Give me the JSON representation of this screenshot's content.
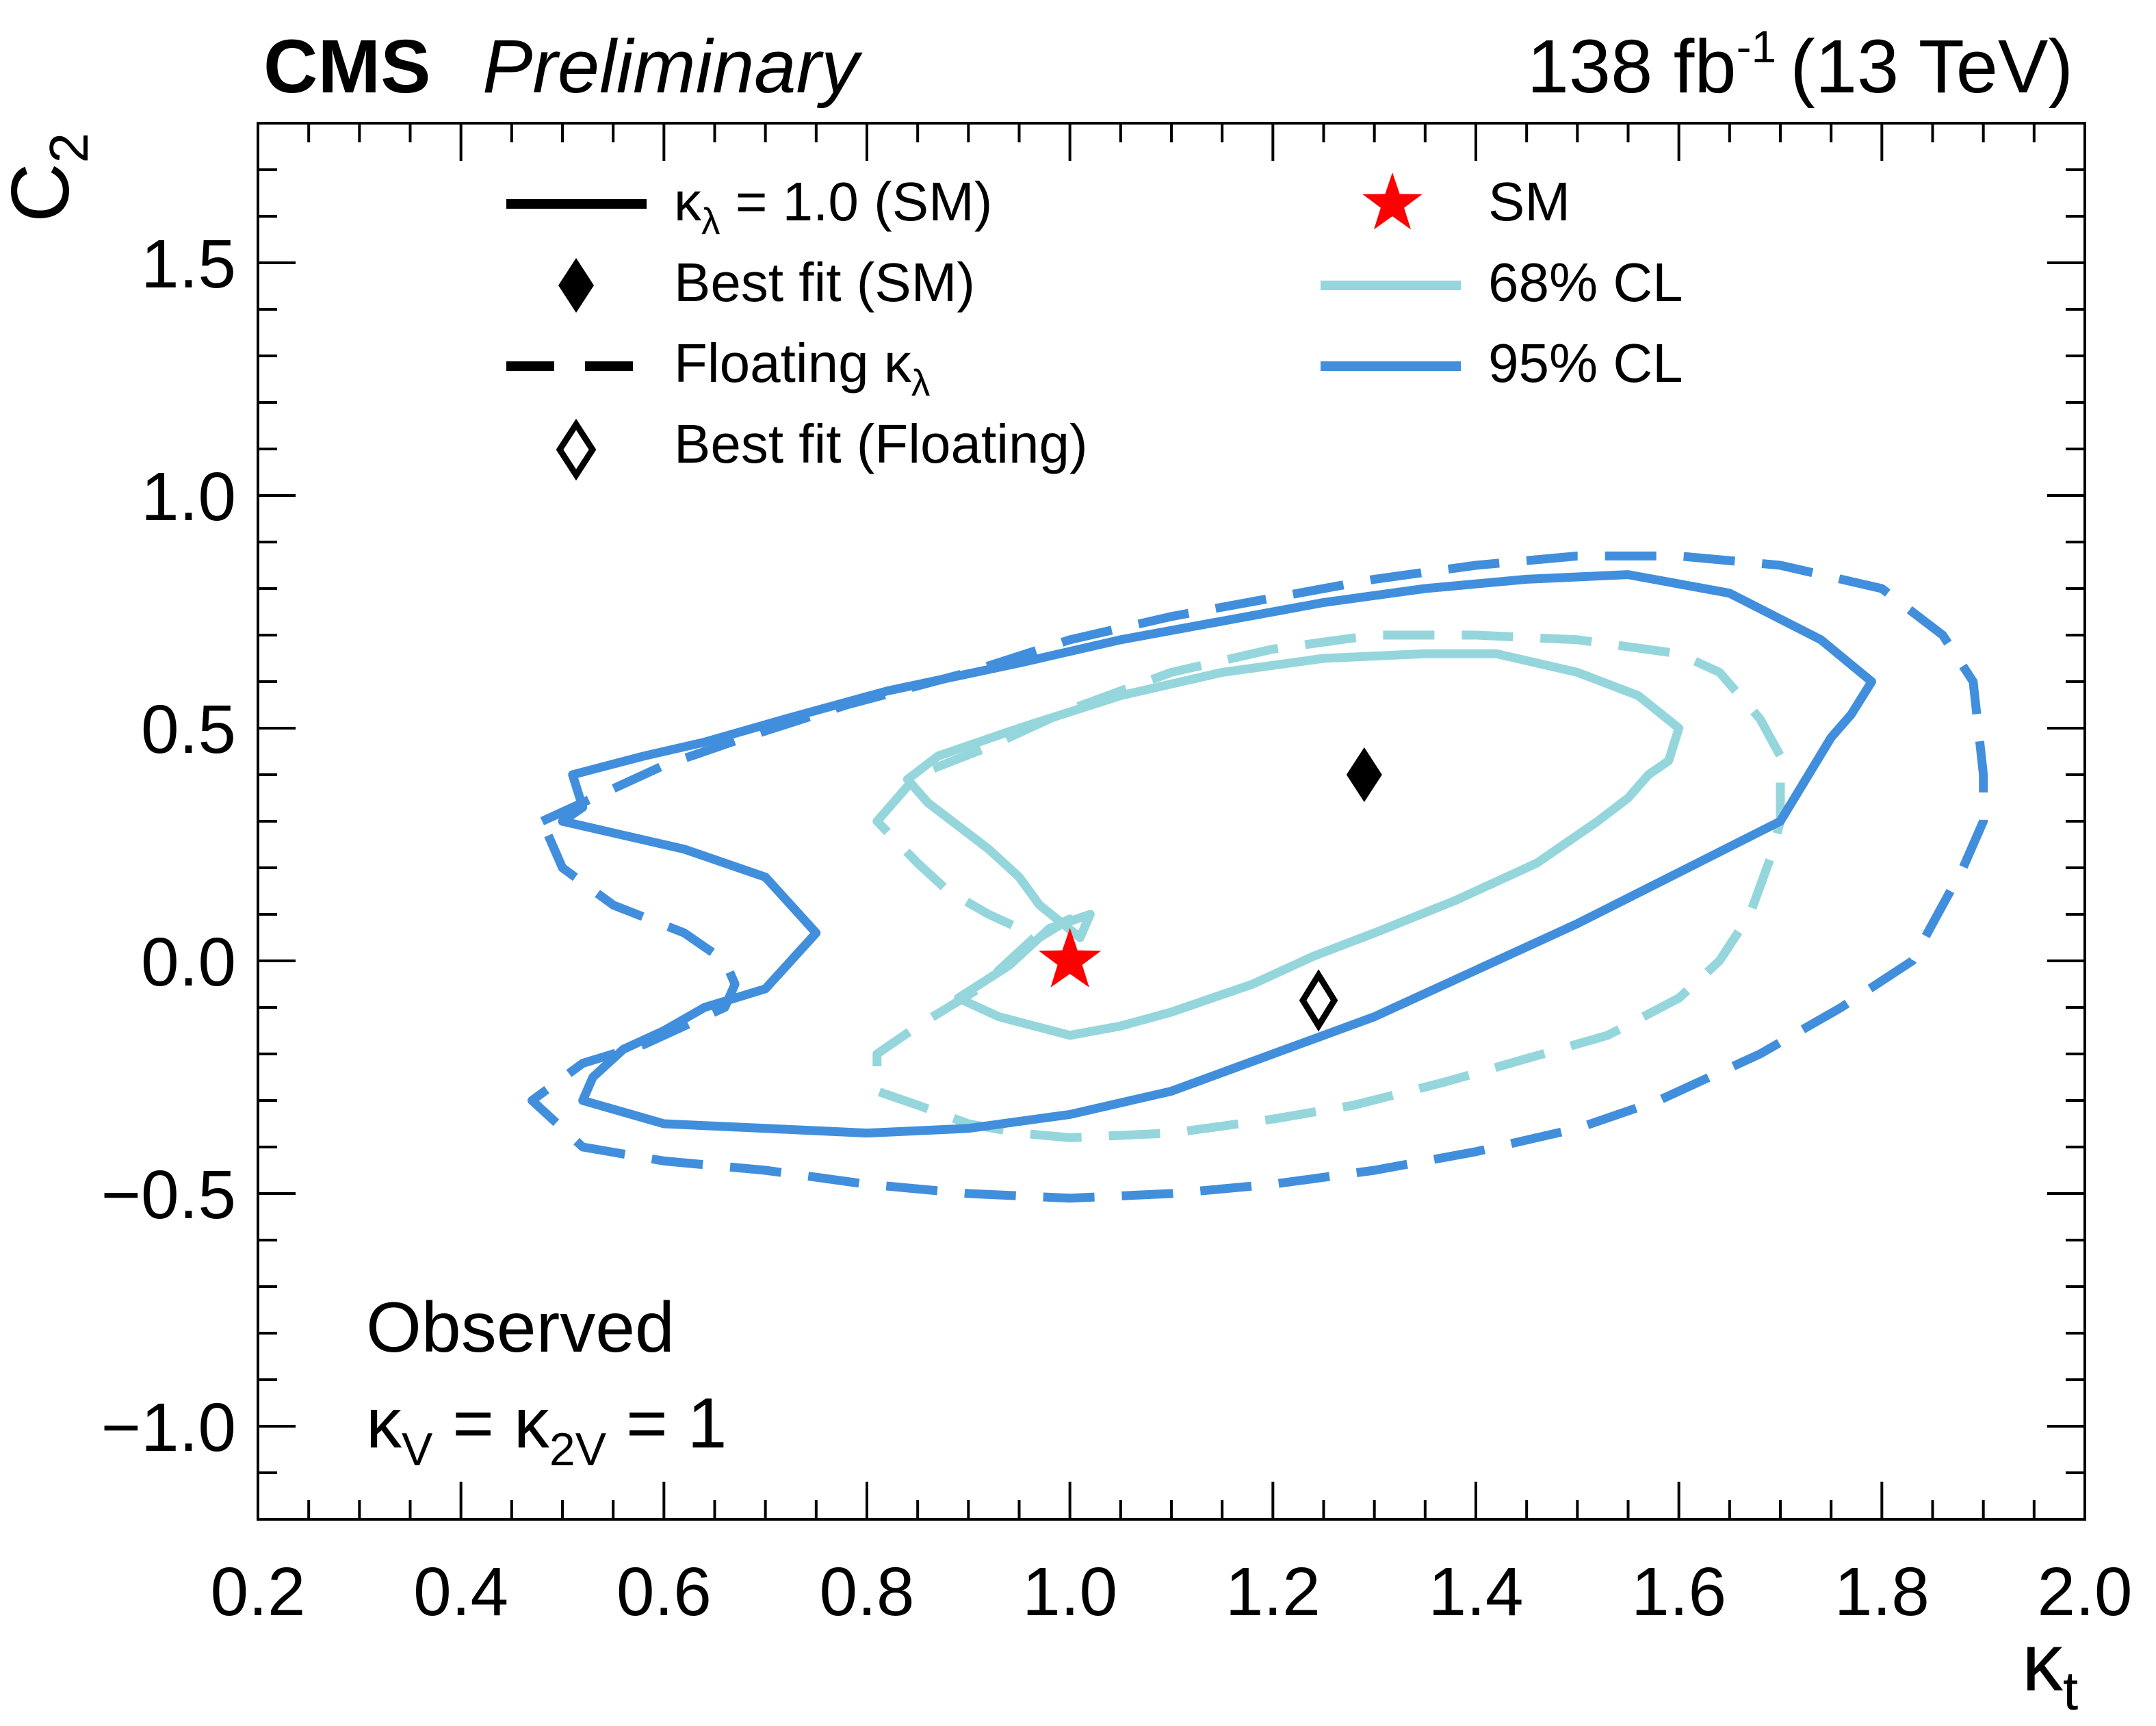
{
  "header": {
    "experiment": "CMS",
    "status": "Preliminary",
    "lumi_value": "138 fb",
    "lumi_exp": "-1",
    "energy": "(13 TeV)"
  },
  "legend": {
    "solid": {
      "symbol": "κ",
      "sub": "λ",
      "text": " = 1.0 (SM)"
    },
    "best_sm": "Best fit (SM)",
    "floating": {
      "text": " Floating κ",
      "sub": "λ"
    },
    "best_floating": "Best fit (Floating)",
    "sm": "SM",
    "cl68": "68% CL",
    "cl95": "95% CL"
  },
  "annotation": {
    "observed": "Observed",
    "cond": {
      "k1": "κ",
      "s1": "V",
      "mid": " = κ",
      "s2": "2V",
      "end": " = 1"
    }
  },
  "colors": {
    "cl68": "#95d6dc",
    "cl95": "#418fdc",
    "sm_star": "#ff0000",
    "axis": "#000000"
  },
  "chart_data": {
    "type": "line",
    "title": "",
    "xlabel": "κt",
    "ylabel": "C2",
    "xlim": [
      0.2,
      2.0
    ],
    "ylim": [
      -1.2,
      1.8
    ],
    "x_ticks": [
      0.2,
      0.4,
      0.6,
      0.8,
      1.0,
      1.2,
      1.4,
      1.6,
      1.8,
      2.0
    ],
    "x_tick_labels": [
      "0.2",
      "0.4",
      "0.6",
      "0.8",
      "1.0",
      "1.2",
      "1.4",
      "1.6",
      "1.8",
      "2.0"
    ],
    "y_ticks": [
      -1.0,
      -0.5,
      0.0,
      0.5,
      1.0,
      1.5
    ],
    "y_tick_labels": [
      "−1.0",
      "−0.5",
      "0.0",
      "0.5",
      "1.0",
      "1.5"
    ],
    "x_minor_step": 0.05,
    "y_minor_step": 0.1,
    "grid": false,
    "legend_position": "top",
    "series": [
      {
        "name": "68% CL, κλ = 1.0 (SM)",
        "cl": "68",
        "style": "solid",
        "points": [
          [
            0.84,
            0.39
          ],
          [
            0.87,
            0.44
          ],
          [
            0.95,
            0.5
          ],
          [
            1.05,
            0.57
          ],
          [
            1.15,
            0.62
          ],
          [
            1.25,
            0.65
          ],
          [
            1.35,
            0.66
          ],
          [
            1.42,
            0.66
          ],
          [
            1.5,
            0.62
          ],
          [
            1.56,
            0.57
          ],
          [
            1.6,
            0.5
          ],
          [
            1.59,
            0.43
          ],
          [
            1.57,
            0.4
          ],
          [
            1.55,
            0.35
          ],
          [
            1.52,
            0.3
          ],
          [
            1.46,
            0.21
          ],
          [
            1.38,
            0.13
          ],
          [
            1.3,
            0.06
          ],
          [
            1.24,
            0.01
          ],
          [
            1.18,
            -0.05
          ],
          [
            1.1,
            -0.11
          ],
          [
            1.05,
            -0.14
          ],
          [
            1.0,
            -0.16
          ],
          [
            0.93,
            -0.12
          ],
          [
            0.89,
            -0.08
          ],
          [
            0.94,
            -0.01
          ],
          [
            0.98,
            0.07
          ],
          [
            1.02,
            0.1
          ],
          [
            1.01,
            0.05
          ],
          [
            0.97,
            0.12
          ],
          [
            0.95,
            0.18
          ],
          [
            0.92,
            0.24
          ],
          [
            0.89,
            0.29
          ],
          [
            0.86,
            0.34
          ],
          [
            0.84,
            0.39
          ]
        ]
      },
      {
        "name": "68% CL, Floating κλ",
        "cl": "68",
        "style": "dashed",
        "points": [
          [
            0.81,
            0.3
          ],
          [
            0.85,
            0.4
          ],
          [
            0.92,
            0.46
          ],
          [
            1.0,
            0.54
          ],
          [
            1.1,
            0.62
          ],
          [
            1.2,
            0.67
          ],
          [
            1.3,
            0.7
          ],
          [
            1.4,
            0.7
          ],
          [
            1.5,
            0.69
          ],
          [
            1.6,
            0.66
          ],
          [
            1.64,
            0.62
          ],
          [
            1.68,
            0.52
          ],
          [
            1.7,
            0.44
          ],
          [
            1.7,
            0.3
          ],
          [
            1.69,
            0.22
          ],
          [
            1.67,
            0.1
          ],
          [
            1.64,
            0.0
          ],
          [
            1.6,
            -0.08
          ],
          [
            1.53,
            -0.16
          ],
          [
            1.45,
            -0.21
          ],
          [
            1.37,
            -0.26
          ],
          [
            1.28,
            -0.31
          ],
          [
            1.2,
            -0.34
          ],
          [
            1.1,
            -0.37
          ],
          [
            1.0,
            -0.38
          ],
          [
            0.95,
            -0.37
          ],
          [
            0.9,
            -0.35
          ],
          [
            0.85,
            -0.31
          ],
          [
            0.81,
            -0.28
          ],
          [
            0.81,
            -0.2
          ],
          [
            0.85,
            -0.14
          ],
          [
            0.88,
            -0.1
          ],
          [
            0.91,
            -0.06
          ],
          [
            0.94,
            0.0
          ],
          [
            0.97,
            0.06
          ],
          [
            1.0,
            0.09
          ],
          [
            0.97,
            0.05
          ],
          [
            0.92,
            0.1
          ],
          [
            0.88,
            0.15
          ],
          [
            0.85,
            0.21
          ],
          [
            0.81,
            0.3
          ]
        ]
      },
      {
        "name": "95% CL, κλ = 1.0 (SM)",
        "cl": "95",
        "style": "solid",
        "points": [
          [
            0.51,
            0.4
          ],
          [
            0.58,
            0.44
          ],
          [
            0.64,
            0.47
          ],
          [
            0.72,
            0.52
          ],
          [
            0.82,
            0.58
          ],
          [
            0.95,
            0.64
          ],
          [
            1.05,
            0.69
          ],
          [
            1.15,
            0.73
          ],
          [
            1.25,
            0.77
          ],
          [
            1.35,
            0.8
          ],
          [
            1.45,
            0.82
          ],
          [
            1.55,
            0.83
          ],
          [
            1.65,
            0.79
          ],
          [
            1.74,
            0.69
          ],
          [
            1.79,
            0.6
          ],
          [
            1.77,
            0.53
          ],
          [
            1.75,
            0.48
          ],
          [
            1.7,
            0.3
          ],
          [
            1.6,
            0.19
          ],
          [
            1.5,
            0.08
          ],
          [
            1.4,
            -0.02
          ],
          [
            1.3,
            -0.12
          ],
          [
            1.2,
            -0.2
          ],
          [
            1.1,
            -0.28
          ],
          [
            1.0,
            -0.33
          ],
          [
            0.9,
            -0.36
          ],
          [
            0.8,
            -0.37
          ],
          [
            0.7,
            -0.36
          ],
          [
            0.6,
            -0.35
          ],
          [
            0.52,
            -0.3
          ],
          [
            0.53,
            -0.25
          ],
          [
            0.56,
            -0.19
          ],
          [
            0.6,
            -0.15
          ],
          [
            0.64,
            -0.1
          ],
          [
            0.7,
            -0.06
          ],
          [
            0.75,
            0.06
          ],
          [
            0.7,
            0.18
          ],
          [
            0.62,
            0.24
          ],
          [
            0.5,
            0.3
          ],
          [
            0.52,
            0.33
          ],
          [
            0.51,
            0.4
          ]
        ]
      },
      {
        "name": "95% CL, Floating κλ",
        "cl": "95",
        "style": "dashed",
        "points": [
          [
            0.48,
            0.3
          ],
          [
            0.55,
            0.37
          ],
          [
            0.6,
            0.42
          ],
          [
            0.68,
            0.48
          ],
          [
            0.78,
            0.55
          ],
          [
            0.9,
            0.62
          ],
          [
            1.0,
            0.69
          ],
          [
            1.1,
            0.74
          ],
          [
            1.2,
            0.78
          ],
          [
            1.3,
            0.82
          ],
          [
            1.4,
            0.85
          ],
          [
            1.5,
            0.87
          ],
          [
            1.6,
            0.87
          ],
          [
            1.7,
            0.85
          ],
          [
            1.8,
            0.8
          ],
          [
            1.86,
            0.7
          ],
          [
            1.89,
            0.6
          ],
          [
            1.9,
            0.4
          ],
          [
            1.9,
            0.3
          ],
          [
            1.88,
            0.2
          ],
          [
            1.83,
            0.0
          ],
          [
            1.76,
            -0.1
          ],
          [
            1.68,
            -0.2
          ],
          [
            1.58,
            -0.3
          ],
          [
            1.5,
            -0.36
          ],
          [
            1.4,
            -0.41
          ],
          [
            1.3,
            -0.45
          ],
          [
            1.2,
            -0.48
          ],
          [
            1.1,
            -0.5
          ],
          [
            1.0,
            -0.51
          ],
          [
            0.9,
            -0.5
          ],
          [
            0.8,
            -0.48
          ],
          [
            0.7,
            -0.45
          ],
          [
            0.6,
            -0.43
          ],
          [
            0.52,
            -0.4
          ],
          [
            0.47,
            -0.3
          ],
          [
            0.52,
            -0.22
          ],
          [
            0.58,
            -0.18
          ],
          [
            0.66,
            -0.1
          ],
          [
            0.67,
            -0.05
          ],
          [
            0.66,
            0.0
          ],
          [
            0.62,
            0.06
          ],
          [
            0.55,
            0.12
          ],
          [
            0.5,
            0.2
          ],
          [
            0.48,
            0.3
          ]
        ]
      }
    ],
    "markers": [
      {
        "name": "SM",
        "type": "star",
        "x": 1.0,
        "y": 0.0
      },
      {
        "name": "Best fit (SM)",
        "type": "diamond-filled",
        "x": 1.29,
        "y": 0.4
      },
      {
        "name": "Best fit (Floating)",
        "type": "diamond-open",
        "x": 1.245,
        "y": -0.085
      }
    ]
  }
}
